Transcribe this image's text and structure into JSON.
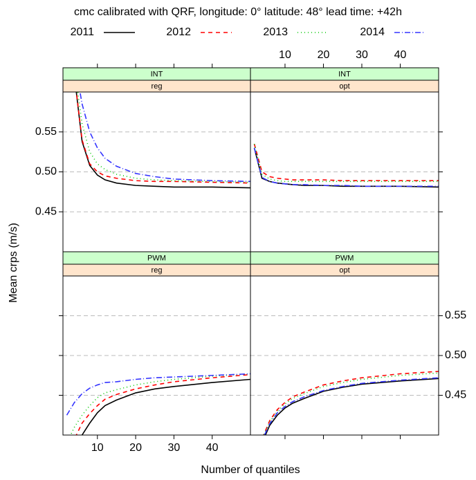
{
  "chart_data": {
    "type": "line",
    "title": "cmc calibrated with QRF, longitude:  0° latitude: 48° lead time: +42h",
    "xlabel": "Number of quantiles",
    "ylabel": "Mean crps (m/s)",
    "x": [
      2,
      4,
      6,
      8,
      10,
      12,
      15,
      20,
      25,
      30,
      40,
      50
    ],
    "xlim": [
      1,
      50
    ],
    "xticks": [
      10,
      20,
      30,
      40
    ],
    "ylim": [
      0.4,
      0.6
    ],
    "yticks": [
      0.45,
      {
        "value": 0.5,
        "label": "0.50"
      },
      0.55
    ],
    "grid": true,
    "series": [
      {
        "name": "2011",
        "color": "#000000",
        "dash": "none"
      },
      {
        "name": "2012",
        "color": "#ff0000",
        "dash": "6,5"
      },
      {
        "name": "2013",
        "color": "#00c800",
        "dash": "1,4"
      },
      {
        "name": "2014",
        "color": "#3333ff",
        "dash": "8,3,1,3"
      }
    ],
    "panels": [
      {
        "strips": [
          "INT",
          "reg"
        ],
        "values": [
          [
            0.7,
            0.62,
            0.538,
            0.508,
            0.496,
            0.49,
            0.486,
            0.483,
            0.482,
            0.481,
            0.481,
            0.48
          ],
          [
            0.7,
            0.62,
            0.54,
            0.51,
            0.5,
            0.495,
            0.492,
            0.489,
            0.488,
            0.488,
            0.487,
            0.486
          ],
          [
            0.72,
            0.63,
            0.56,
            0.525,
            0.51,
            0.503,
            0.497,
            0.492,
            0.49,
            0.489,
            0.488,
            0.487
          ],
          [
            0.74,
            0.64,
            0.585,
            0.55,
            0.53,
            0.517,
            0.507,
            0.498,
            0.494,
            0.491,
            0.489,
            0.488
          ]
        ]
      },
      {
        "strips": [
          "INT",
          "opt"
        ],
        "values": [
          [
            0.53,
            0.492,
            0.488,
            0.486,
            0.485,
            0.484,
            0.483,
            0.483,
            0.482,
            0.482,
            0.482,
            0.481
          ],
          [
            0.535,
            0.5,
            0.494,
            0.492,
            0.491,
            0.49,
            0.49,
            0.49,
            0.489,
            0.489,
            0.489,
            0.489
          ],
          [
            0.535,
            0.497,
            0.491,
            0.489,
            0.488,
            0.488,
            0.488,
            0.488,
            0.488,
            0.488,
            0.488,
            0.488
          ],
          [
            0.53,
            0.493,
            0.488,
            0.486,
            0.485,
            0.484,
            0.484,
            0.483,
            0.483,
            0.482,
            0.482,
            0.482
          ]
        ]
      },
      {
        "strips": [
          "PWM",
          "reg"
        ],
        "values": [
          [
            0.33,
            0.37,
            0.4,
            0.415,
            0.428,
            0.437,
            0.444,
            0.453,
            0.458,
            0.461,
            0.466,
            0.47
          ],
          [
            0.36,
            0.395,
            0.415,
            0.427,
            0.437,
            0.445,
            0.451,
            0.458,
            0.463,
            0.467,
            0.472,
            0.476
          ],
          [
            0.39,
            0.41,
            0.425,
            0.437,
            0.447,
            0.453,
            0.457,
            0.463,
            0.467,
            0.47,
            0.474,
            0.477
          ],
          [
            0.425,
            0.441,
            0.452,
            0.459,
            0.463,
            0.466,
            0.467,
            0.47,
            0.472,
            0.473,
            0.475,
            0.477
          ]
        ]
      },
      {
        "strips": [
          "PWM",
          "opt"
        ],
        "values": [
          [
            0.35,
            0.39,
            0.412,
            0.425,
            0.434,
            0.44,
            0.446,
            0.455,
            0.46,
            0.464,
            0.468,
            0.471
          ],
          [
            0.35,
            0.395,
            0.418,
            0.432,
            0.441,
            0.448,
            0.454,
            0.463,
            0.468,
            0.472,
            0.477,
            0.48
          ],
          [
            0.35,
            0.395,
            0.416,
            0.43,
            0.439,
            0.446,
            0.452,
            0.461,
            0.466,
            0.47,
            0.475,
            0.478
          ],
          [
            0.35,
            0.393,
            0.414,
            0.428,
            0.436,
            0.442,
            0.448,
            0.456,
            0.461,
            0.465,
            0.469,
            0.472
          ]
        ]
      }
    ]
  }
}
